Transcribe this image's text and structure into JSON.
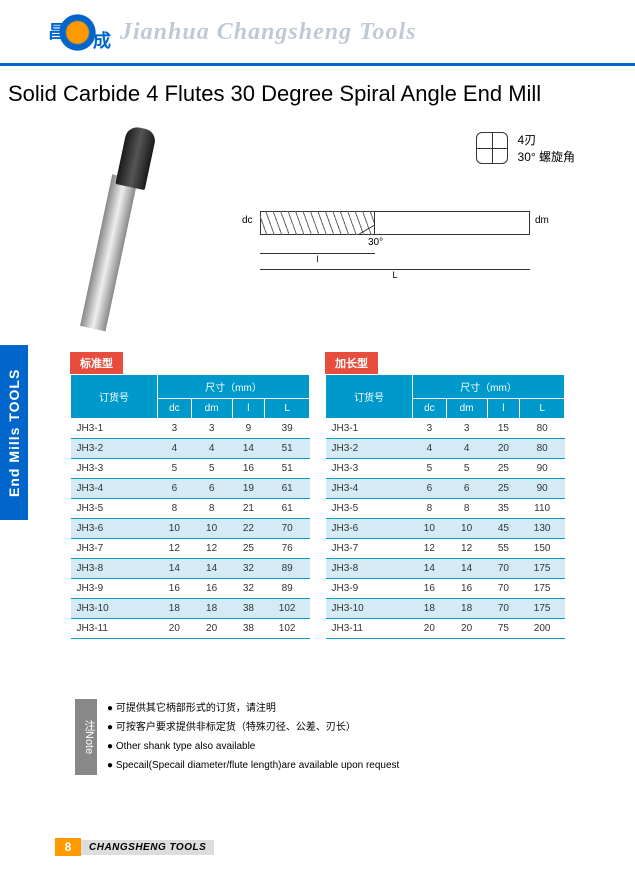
{
  "brand": "Jianhua Changsheng Tools",
  "title": "Solid Carbide 4 Flutes 30 Degree Spiral Angle End Mill",
  "tech": {
    "line1": "4刃",
    "line2": "30° 螺旋角",
    "angle": "30°",
    "dc": "dc",
    "dm": "dm",
    "l": "l",
    "L": "L"
  },
  "sidebar": "End Mills TOOLS",
  "table1": {
    "badge": "标准型",
    "order": "订货号",
    "dim": "尺寸（mm）",
    "cols": [
      "dc",
      "dm",
      "l",
      "L"
    ],
    "rows": [
      [
        "JH3-1",
        "3",
        "3",
        "9",
        "39"
      ],
      [
        "JH3-2",
        "4",
        "4",
        "14",
        "51"
      ],
      [
        "JH3-3",
        "5",
        "5",
        "16",
        "51"
      ],
      [
        "JH3-4",
        "6",
        "6",
        "19",
        "61"
      ],
      [
        "JH3-5",
        "8",
        "8",
        "21",
        "61"
      ],
      [
        "JH3-6",
        "10",
        "10",
        "22",
        "70"
      ],
      [
        "JH3-7",
        "12",
        "12",
        "25",
        "76"
      ],
      [
        "JH3-8",
        "14",
        "14",
        "32",
        "89"
      ],
      [
        "JH3-9",
        "16",
        "16",
        "32",
        "89"
      ],
      [
        "JH3-10",
        "18",
        "18",
        "38",
        "102"
      ],
      [
        "JH3-11",
        "20",
        "20",
        "38",
        "102"
      ]
    ]
  },
  "table2": {
    "badge": "加长型",
    "order": "订货号",
    "dim": "尺寸（mm）",
    "cols": [
      "dc",
      "dm",
      "l",
      "L"
    ],
    "rows": [
      [
        "JH3-1",
        "3",
        "3",
        "15",
        "80"
      ],
      [
        "JH3-2",
        "4",
        "4",
        "20",
        "80"
      ],
      [
        "JH3-3",
        "5",
        "5",
        "25",
        "90"
      ],
      [
        "JH3-4",
        "6",
        "6",
        "25",
        "90"
      ],
      [
        "JH3-5",
        "8",
        "8",
        "35",
        "110"
      ],
      [
        "JH3-6",
        "10",
        "10",
        "45",
        "130"
      ],
      [
        "JH3-7",
        "12",
        "12",
        "55",
        "150"
      ],
      [
        "JH3-8",
        "14",
        "14",
        "70",
        "175"
      ],
      [
        "JH3-9",
        "16",
        "16",
        "70",
        "175"
      ],
      [
        "JH3-10",
        "18",
        "18",
        "70",
        "175"
      ],
      [
        "JH3-11",
        "20",
        "20",
        "75",
        "200"
      ]
    ]
  },
  "notes": {
    "badge": "注Note",
    "items": [
      "可提供其它柄部形式的订货，请注明",
      "可按客户要求提供非标定货（特殊刃径、公差、刃长）",
      "Other shank type also available",
      "Specail(Specail diameter/flute length)are available upon request"
    ]
  },
  "footer": {
    "page": "8",
    "label": "CHANGSHENG TOOLS"
  }
}
